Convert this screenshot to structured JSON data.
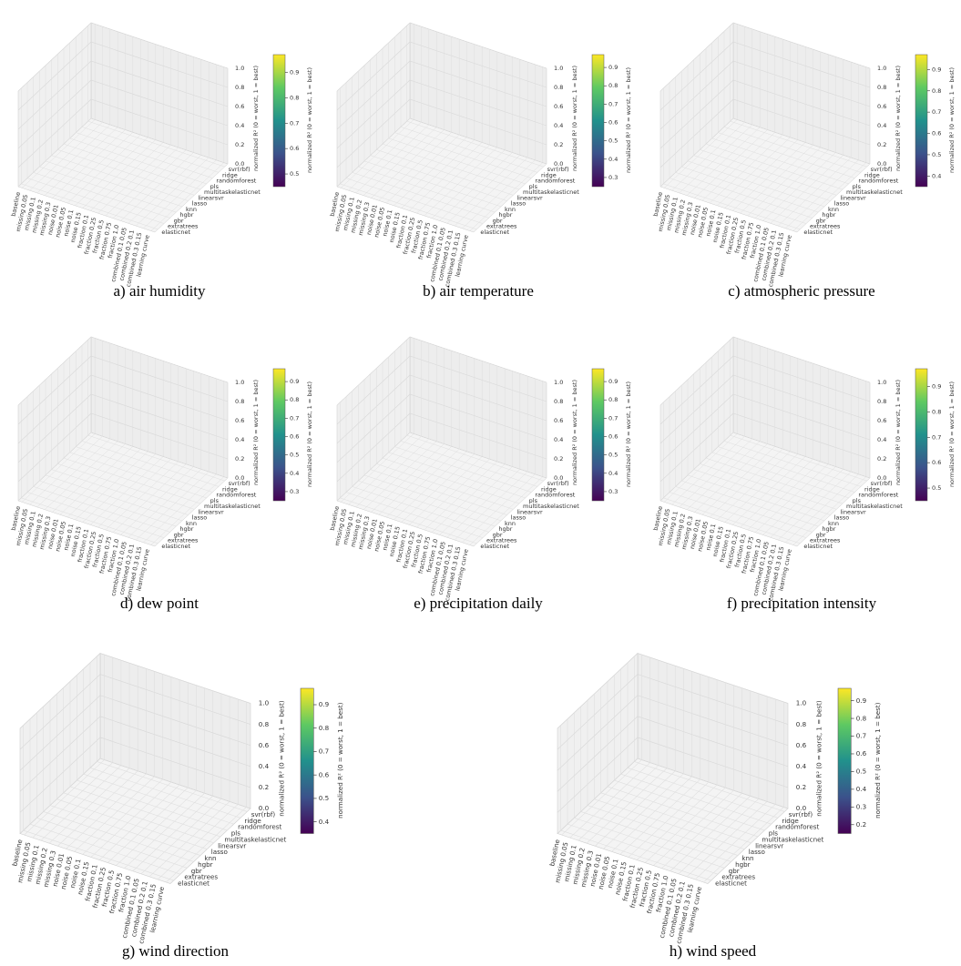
{
  "chart_data": [
    {
      "type": "surface3d",
      "caption": "a) air humidity",
      "categories": [
        "baseline",
        "missing 0.05",
        "missing 0.1",
        "missing 0.2",
        "missing 0.3",
        "noise 0.01",
        "noise 0.05",
        "noise 0.1",
        "noise 0.15",
        "fraction 0.1",
        "fraction 0.25",
        "fraction 0.5",
        "fraction 0.75",
        "fraction 1.0",
        "combined 0.1 0.05",
        "combined 0.2 0.1",
        "combined 0.3 0.15",
        "learning curve"
      ],
      "models": [
        "elasticnet",
        "extratrees",
        "gbr",
        "hgbr",
        "knn",
        "lasso",
        "linearsvr",
        "multitaskelasticnet",
        "pls",
        "randomforest",
        "ridge",
        "svr(rbf)"
      ],
      "zlabel": "normalized R² (0 = worst, 1 = best)",
      "zlim": [
        0,
        1
      ],
      "zticks": [
        {
          "value": 0,
          "label": "0.0"
        },
        0.2,
        0.4,
        0.6,
        0.8,
        {
          "value": 1,
          "label": "1.0"
        }
      ],
      "colorbar_label": "normalized R² (0 = worst, 1 = best)",
      "clim": [
        0.45,
        0.97
      ],
      "cticks": [
        0.5,
        0.6,
        0.7,
        0.8,
        0.9
      ]
    },
    {
      "type": "surface3d",
      "caption": "b) air temperature",
      "categories": [
        "baseline",
        "missing 0.05",
        "missing 0.1",
        "missing 0.2",
        "missing 0.3",
        "noise 0.01",
        "noise 0.05",
        "noise 0.1",
        "noise 0.15",
        "fraction 0.1",
        "fraction 0.25",
        "fraction 0.5",
        "fraction 0.75",
        "fraction 1.0",
        "combined 0.1 0.05",
        "combined 0.2 0.1",
        "combined 0.3 0.15",
        "learning curve"
      ],
      "models": [
        "elasticnet",
        "extratrees",
        "gbr",
        "hgbr",
        "knn",
        "lasso",
        "linearsvr",
        "multitaskelasticnet",
        "pls",
        "randomforest",
        "ridge",
        "svr(rbf)"
      ],
      "zlabel": "normalized R² (0 = worst, 1 = best)",
      "zlim": [
        0,
        1
      ],
      "zticks": [
        {
          "value": 0,
          "label": "0.0"
        },
        0.2,
        0.4,
        0.6,
        0.8,
        {
          "value": 1,
          "label": "1.0"
        }
      ],
      "colorbar_label": "normalized R² (0 = worst, 1 = best)",
      "clim": [
        0.25,
        0.97
      ],
      "cticks": [
        0.3,
        0.4,
        0.5,
        0.6,
        0.7,
        0.8,
        0.9
      ]
    },
    {
      "type": "surface3d",
      "caption": "c) atmospheric pressure",
      "categories": [
        "baseline",
        "missing 0.05",
        "missing 0.1",
        "missing 0.2",
        "missing 0.3",
        "noise 0.01",
        "noise 0.05",
        "noise 0.1",
        "noise 0.15",
        "fraction 0.1",
        "fraction 0.25",
        "fraction 0.5",
        "fraction 0.75",
        "fraction 1.0",
        "combined 0.1 0.05",
        "combined 0.2 0.1",
        "combined 0.3 0.15",
        "learning curve"
      ],
      "models": [
        "elasticnet",
        "extratrees",
        "gbr",
        "hgbr",
        "knn",
        "lasso",
        "linearsvr",
        "multitaskelasticnet",
        "pls",
        "randomforest",
        "ridge",
        "svr(rbf)"
      ],
      "zlabel": "normalized R² (0 = worst, 1 = best)",
      "zlim": [
        0,
        1
      ],
      "zticks": [
        {
          "value": 0,
          "label": "0.0"
        },
        0.2,
        0.4,
        0.6,
        0.8,
        {
          "value": 1,
          "label": "1.0"
        }
      ],
      "colorbar_label": "normalized R² (0 = worst, 1 = best)",
      "clim": [
        0.35,
        0.97
      ],
      "cticks": [
        0.4,
        0.5,
        0.6,
        0.7,
        0.8,
        0.9
      ]
    },
    {
      "type": "surface3d",
      "caption": "d) dew point",
      "categories": [
        "baseline",
        "missing 0.05",
        "missing 0.1",
        "missing 0.2",
        "missing 0.3",
        "noise 0.01",
        "noise 0.05",
        "noise 0.1",
        "noise 0.15",
        "fraction 0.1",
        "fraction 0.25",
        "fraction 0.5",
        "fraction 0.75",
        "fraction 1.0",
        "combined 0.1 0.05",
        "combined 0.2 0.1",
        "combined 0.3 0.15",
        "learning curve"
      ],
      "models": [
        "elasticnet",
        "extratrees",
        "gbr",
        "hgbr",
        "knn",
        "lasso",
        "linearsvr",
        "multitaskelasticnet",
        "pls",
        "randomforest",
        "ridge",
        "svr(rbf)"
      ],
      "zlabel": "normalized R² (0 = worst, 1 = best)",
      "zlim": [
        0,
        1
      ],
      "zticks": [
        {
          "value": 0,
          "label": "0.0"
        },
        0.2,
        0.4,
        0.6,
        0.8,
        {
          "value": 1,
          "label": "1.0"
        }
      ],
      "colorbar_label": "normalized R² (0 = worst, 1 = best)",
      "clim": [
        0.25,
        0.97
      ],
      "cticks": [
        0.3,
        0.4,
        0.5,
        0.6,
        0.7,
        0.8,
        0.9
      ]
    },
    {
      "type": "surface3d",
      "caption": "e) precipitation daily",
      "categories": [
        "baseline",
        "missing 0.05",
        "missing 0.1",
        "missing 0.2",
        "missing 0.3",
        "noise 0.01",
        "noise 0.05",
        "noise 0.1",
        "noise 0.15",
        "fraction 0.1",
        "fraction 0.25",
        "fraction 0.5",
        "fraction 0.75",
        "fraction 1.0",
        "combined 0.1 0.05",
        "combined 0.2 0.1",
        "combined 0.3 0.15",
        "learning curve"
      ],
      "models": [
        "elasticnet",
        "extratrees",
        "gbr",
        "hgbr",
        "knn",
        "lasso",
        "linearsvr",
        "multitaskelasticnet",
        "pls",
        "randomforest",
        "ridge",
        "svr(rbf)"
      ],
      "zlabel": "normalized R² (0 = worst, 1 = best)",
      "zlim": [
        0,
        1
      ],
      "zticks": [
        {
          "value": 0,
          "label": "0.0"
        },
        0.2,
        0.4,
        0.6,
        0.8,
        {
          "value": 1,
          "label": "1.0"
        }
      ],
      "colorbar_label": "normalized R² (0 = worst, 1 = best)",
      "clim": [
        0.25,
        0.97
      ],
      "cticks": [
        0.3,
        0.4,
        0.5,
        0.6,
        0.7,
        0.8,
        0.9
      ]
    },
    {
      "type": "surface3d",
      "caption": "f) precipitation intensity",
      "categories": [
        "baseline",
        "missing 0.05",
        "missing 0.1",
        "missing 0.2",
        "missing 0.3",
        "noise 0.01",
        "noise 0.05",
        "noise 0.1",
        "noise 0.15",
        "fraction 0.1",
        "fraction 0.25",
        "fraction 0.5",
        "fraction 0.75",
        "fraction 1.0",
        "combined 0.1 0.05",
        "combined 0.2 0.1",
        "combined 0.3 0.15",
        "learning curve"
      ],
      "models": [
        "elasticnet",
        "extratrees",
        "gbr",
        "hgbr",
        "knn",
        "lasso",
        "linearsvr",
        "multitaskelasticnet",
        "pls",
        "randomforest",
        "ridge",
        "svr(rbf)"
      ],
      "zlabel": "normalized R² (0 = worst, 1 = best)",
      "zlim": [
        0,
        1
      ],
      "zticks": [
        {
          "value": 0,
          "label": "0.0"
        },
        0.2,
        0.4,
        0.6,
        0.8,
        {
          "value": 1,
          "label": "1.0"
        }
      ],
      "colorbar_label": "normalized R² (0 = worst, 1 = best)",
      "clim": [
        0.45,
        0.97
      ],
      "cticks": [
        0.5,
        0.6,
        0.7,
        0.8,
        0.9
      ]
    },
    {
      "type": "surface3d",
      "caption": "g) wind direction",
      "categories": [
        "baseline",
        "missing 0.05",
        "missing 0.1",
        "missing 0.2",
        "missing 0.3",
        "noise 0.01",
        "noise 0.05",
        "noise 0.1",
        "noise 0.15",
        "fraction 0.1",
        "fraction 0.25",
        "fraction 0.5",
        "fraction 0.75",
        "fraction 1.0",
        "combined 0.1 0.05",
        "combined 0.2 0.1",
        "combined 0.3 0.15",
        "learning curve"
      ],
      "models": [
        "elasticnet",
        "extratrees",
        "gbr",
        "hgbr",
        "knn",
        "lasso",
        "linearsvr",
        "multitaskelasticnet",
        "pls",
        "randomforest",
        "ridge",
        "svr(rbf)"
      ],
      "zlabel": "normalized R² (0 = worst, 1 = best)",
      "zlim": [
        0,
        1
      ],
      "zticks": [
        {
          "value": 0,
          "label": "0.0"
        },
        0.2,
        0.4,
        0.6,
        0.8,
        {
          "value": 1,
          "label": "1.0"
        }
      ],
      "colorbar_label": "normalized R² (0 = worst, 1 = best)",
      "clim": [
        0.35,
        0.97
      ],
      "cticks": [
        0.4,
        0.5,
        0.6,
        0.7,
        0.8,
        0.9
      ]
    },
    {
      "type": "surface3d",
      "caption": "h) wind speed",
      "categories": [
        "baseline",
        "missing 0.05",
        "missing 0.1",
        "missing 0.2",
        "missing 0.3",
        "noise 0.01",
        "noise 0.05",
        "noise 0.1",
        "noise 0.15",
        "fraction 0.1",
        "fraction 0.25",
        "fraction 0.5",
        "fraction 0.75",
        "fraction 1.0",
        "combined 0.1 0.05",
        "combined 0.2 0.1",
        "combined 0.3 0.15",
        "learning curve"
      ],
      "models": [
        "elasticnet",
        "extratrees",
        "gbr",
        "hgbr",
        "knn",
        "lasso",
        "linearsvr",
        "multitaskelasticnet",
        "pls",
        "randomforest",
        "ridge",
        "svr(rbf)"
      ],
      "zlabel": "normalized R² (0 = worst, 1 = best)",
      "zlim": [
        0,
        1
      ],
      "zticks": [
        {
          "value": 0,
          "label": "0.0"
        },
        0.2,
        0.4,
        0.6,
        0.8,
        {
          "value": 1,
          "label": "1.0"
        }
      ],
      "colorbar_label": "normalized R² (0 = worst, 1 = best)",
      "clim": [
        0.15,
        0.97
      ],
      "cticks": [
        0.2,
        0.3,
        0.4,
        0.5,
        0.6,
        0.7,
        0.8,
        0.9
      ]
    }
  ]
}
